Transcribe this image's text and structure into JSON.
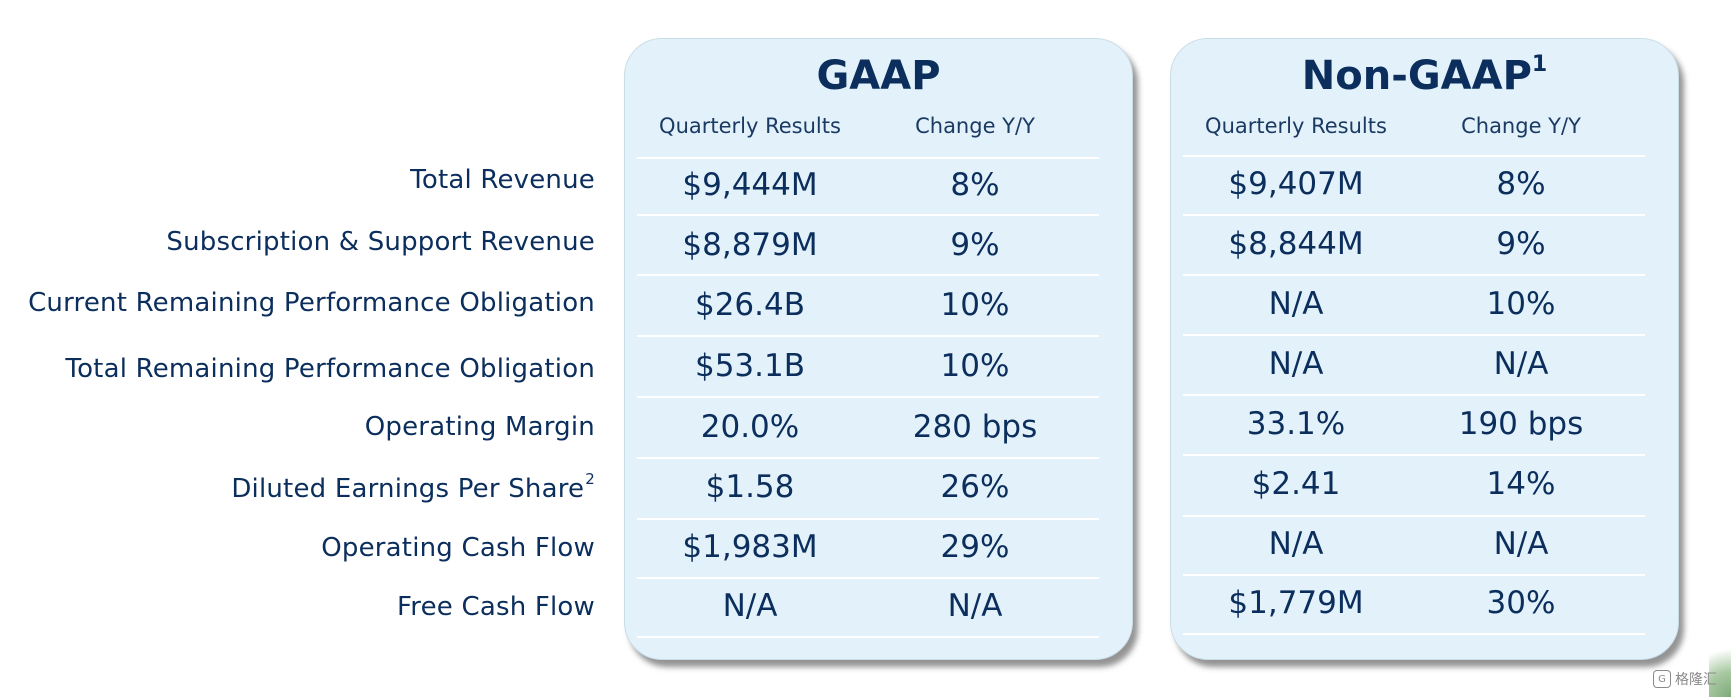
{
  "rows": [
    {
      "label": "Total Revenue",
      "sup": ""
    },
    {
      "label": "Subscription & Support Revenue",
      "sup": ""
    },
    {
      "label": "Current Remaining Performance Obligation",
      "sup": ""
    },
    {
      "label": "Total Remaining Performance Obligation",
      "sup": ""
    },
    {
      "label": "Operating Margin",
      "sup": ""
    },
    {
      "label": "Diluted Earnings Per Share",
      "sup": "2"
    },
    {
      "label": "Operating Cash Flow",
      "sup": ""
    },
    {
      "label": "Free Cash Flow",
      "sup": ""
    }
  ],
  "gaap": {
    "title": "GAAP",
    "col1": "Quarterly Results",
    "col2": "Change Y/Y",
    "values": [
      [
        "$9,444M",
        "8%"
      ],
      [
        "$8,879M",
        "9%"
      ],
      [
        "$26.4B",
        "10%"
      ],
      [
        "$53.1B",
        "10%"
      ],
      [
        "20.0%",
        "280 bps"
      ],
      [
        "$1.58",
        "26%"
      ],
      [
        "$1,983M",
        "29%"
      ],
      [
        "N/A",
        "N/A"
      ]
    ]
  },
  "nongaap": {
    "title": "Non-GAAP",
    "title_sup": "1",
    "col1": "Quarterly Results",
    "col2": "Change Y/Y",
    "values": [
      [
        "$9,407M",
        "8%"
      ],
      [
        "$8,844M",
        "9%"
      ],
      [
        "N/A",
        "10%"
      ],
      [
        "N/A",
        "N/A"
      ],
      [
        "33.1%",
        "190 bps"
      ],
      [
        "$2.41",
        "14%"
      ],
      [
        "N/A",
        "N/A"
      ],
      [
        "$1,779M",
        "30%"
      ]
    ]
  },
  "watermark": {
    "text": "格隆汇"
  }
}
